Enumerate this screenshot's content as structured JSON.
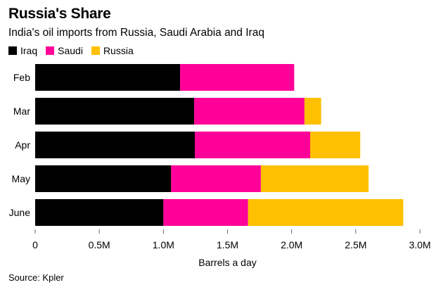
{
  "title": "Russia's Share",
  "subtitle": "India's oil imports from Russia, Saudi Arabia and Iraq",
  "source": "Source: Kpler",
  "colors": {
    "Iraq": "#000000",
    "Saudi": "#ff0099",
    "Russia": "#ffc000"
  },
  "legend": [
    {
      "label": "Iraq",
      "color": "#000000"
    },
    {
      "label": "Saudi",
      "color": "#ff0099"
    },
    {
      "label": "Russia",
      "color": "#ffc000"
    }
  ],
  "chart_data": {
    "type": "bar",
    "orientation": "horizontal",
    "stacked": true,
    "title": "Russia's Share",
    "subtitle": "India's oil imports from Russia, Saudi Arabia and Iraq",
    "xlabel": "Barrels a day",
    "ylabel": "",
    "xlim": [
      0,
      3000000
    ],
    "xticks": [
      0,
      500000,
      1000000,
      1500000,
      2000000,
      2500000,
      3000000
    ],
    "xtick_labels": [
      "0",
      "0.5M",
      "1.0M",
      "1.5M",
      "2.0M",
      "2.5M",
      "3.0M"
    ],
    "categories": [
      "Feb",
      "Mar",
      "Apr",
      "May",
      "June"
    ],
    "series": [
      {
        "name": "Iraq",
        "values": [
          1130000,
          1240000,
          1245000,
          1060000,
          1000000
        ]
      },
      {
        "name": "Saudi",
        "values": [
          890000,
          860000,
          900000,
          700000,
          660000
        ]
      },
      {
        "name": "Russia",
        "values": [
          0,
          130000,
          390000,
          840000,
          1210000
        ]
      }
    ],
    "legend_position": "top-left",
    "grid": false
  }
}
